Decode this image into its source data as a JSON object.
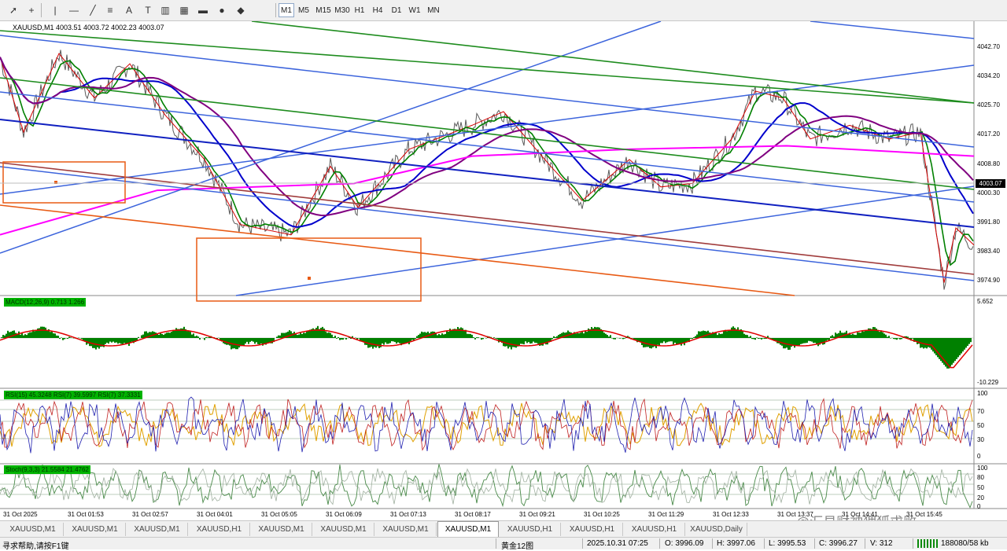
{
  "toolbar": {
    "tools": [
      "cursor-icon",
      "crosshair-icon",
      "vertical-line-icon",
      "horizontal-line-icon",
      "trendline-icon",
      "equidistant-channel-icon",
      "text-icon",
      "text-label-icon",
      "fibonacci-icon",
      "grid-icon",
      "rectangle-icon",
      "ellipse-icon",
      "shapes-icon"
    ],
    "timeframes": [
      "M1",
      "M5",
      "M15",
      "M30",
      "H1",
      "H4",
      "D1",
      "W1",
      "MN"
    ],
    "active_timeframe": "M1"
  },
  "chart": {
    "title": "XAUUSD,M1  4003.51 4003.72 4002.23 4003.07",
    "current_price": "4003.07",
    "price_scale": [
      "4042.70",
      "4034.20",
      "4025.70",
      "4017.20",
      "4008.80",
      "4000.30",
      "3991.80",
      "3983.40",
      "3974.90"
    ],
    "macd_label": "MACD(12,26,9) 0.713 1.266",
    "macd_scale": [
      "5.652",
      "-10.229"
    ],
    "rsi_label": "RSI(15) 45.3248  RSI(7) 39.5997  RSI(7) 37.3331",
    "rsi_scale": [
      "100",
      "70",
      "50",
      "30",
      "0"
    ],
    "stoch_label": "Stoch(9,3,3) 21.5584 21.4762",
    "stoch_scale": [
      "100",
      "80",
      "50",
      "20",
      "0"
    ],
    "time_labels": [
      "31 Oct 2025",
      "31 Oct 01:53",
      "31 Oct 02:57",
      "31 Oct 04:01",
      "31 Oct 05:05",
      "31 Oct 06:09",
      "31 Oct 07:13",
      "31 Oct 08:17",
      "31 Oct 09:21",
      "31 Oct 10:25",
      "31 Oct 11:29",
      "31 Oct 12:33",
      "31 Oct 13:37",
      "31 Oct 14:41",
      "31 Oct 15:45"
    ]
  },
  "tabs": {
    "items": [
      "XAUUSD,M1",
      "XAUUSD,M1",
      "XAUUSD,M1",
      "XAUUSD,H1",
      "XAUUSD,M1",
      "XAUUSD,M1",
      "XAUUSD,M1",
      "XAUUSD,M1",
      "XAUUSD,H1",
      "XAUUSD,H1",
      "XAUUSD,H1",
      "XAUUSD,Daily"
    ],
    "active_index": 7
  },
  "watermark": "@汇易财神狸狐求败",
  "status": {
    "help": "寻求帮助,请按F1键",
    "profile": "黄金12图",
    "datetime": "2025.10.31 07:25",
    "open": "O: 3996.09",
    "high": "H: 3997.06",
    "low": "L: 3995.53",
    "close": "C: 3996.27",
    "volume": "V: 312",
    "traffic": "188080/58 kb"
  },
  "colors": {
    "price_line": "#5b5b5b",
    "zigzag": "#d40000",
    "ma_fast": "#008000",
    "ma_slow": "#0000cc",
    "ma_long": "#800080",
    "ma_magenta": "#ff00ff",
    "channel_blue": "#3c64dc",
    "channel_green": "#1e8c1e",
    "channel_orange": "#e85a14",
    "channel_brown": "#a03c3c",
    "macd_hist": "#008000",
    "macd_signal": "#e00000"
  }
}
